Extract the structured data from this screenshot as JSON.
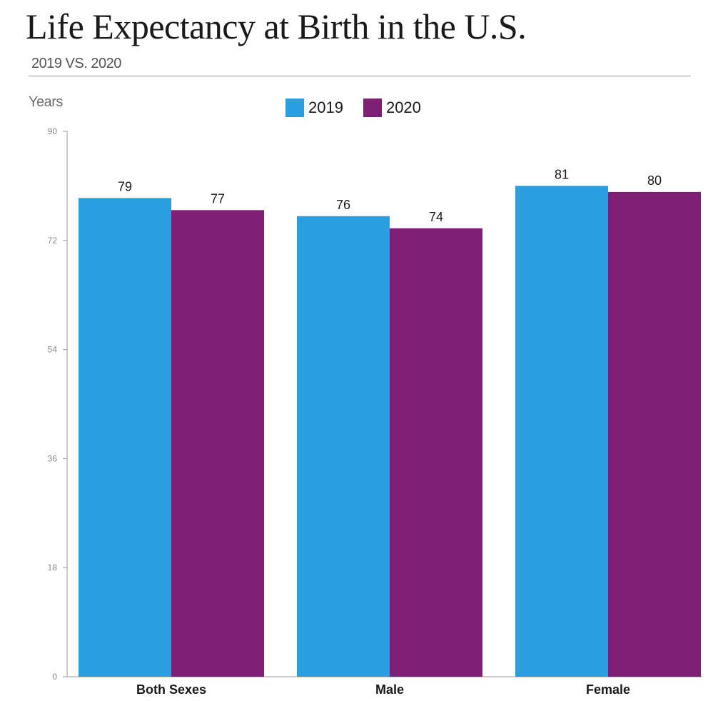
{
  "header": {
    "title": "Life Expectancy at Birth in the U.S.",
    "subtitle": "2019 VS. 2020"
  },
  "legend": {
    "items": [
      {
        "label": "2019",
        "color": "#2a9fdf"
      },
      {
        "label": "2020",
        "color": "#7d1f74"
      }
    ]
  },
  "chart_data": {
    "type": "bar",
    "title": "Life Expectancy at Birth in the U.S.",
    "subtitle": "2019 VS. 2020",
    "xlabel": "",
    "ylabel": "Years",
    "ylim": [
      0,
      90
    ],
    "yticks": [
      0,
      18,
      36,
      54,
      72,
      90
    ],
    "categories": [
      "Both Sexes",
      "Male",
      "Female"
    ],
    "series": [
      {
        "name": "2019",
        "color": "#2a9fdf",
        "values": [
          79,
          76,
          81
        ],
        "labels": [
          "79",
          "76",
          "81"
        ]
      },
      {
        "name": "2020",
        "color": "#7d1f74",
        "values": [
          77,
          74,
          80
        ],
        "labels": [
          "77",
          "74",
          "80"
        ]
      }
    ],
    "legend_position": "top-center",
    "grid": false
  }
}
